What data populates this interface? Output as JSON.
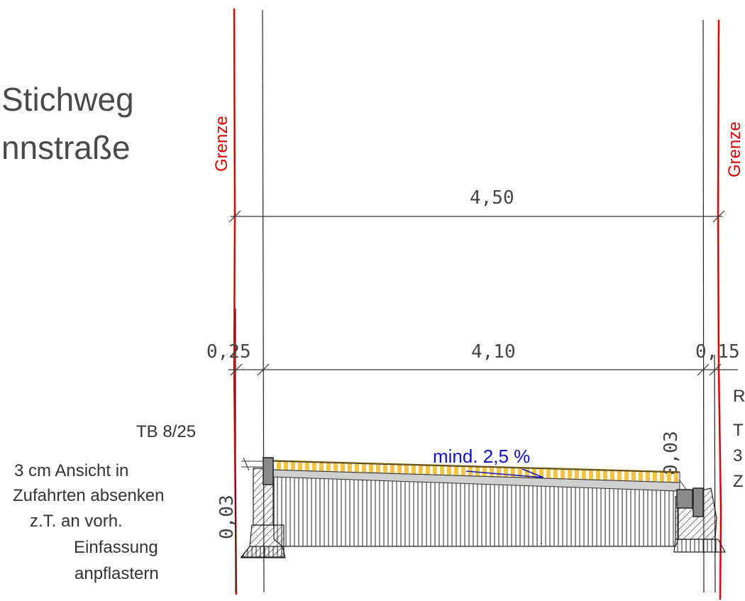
{
  "title": {
    "line1": "Stichweg",
    "line2": "nnstraße"
  },
  "boundary": {
    "left_label": "Grenze",
    "right_label": "Grenze"
  },
  "dimensions": {
    "total": "4,50",
    "left_edge": "0,25",
    "carriageway": "4,10",
    "right_edge": "0,15",
    "left_height": "0,03",
    "right_height": "0,03"
  },
  "slope": {
    "label": "mind. 2,5 %"
  },
  "left_notes": {
    "curb": "TB 8/25",
    "line1": "3 cm Ansicht in",
    "line2": "Zufahrten absenken",
    "line3": "z.T.  an vorh.",
    "line4": "Einfassung",
    "line5": "anpflastern"
  },
  "right_notes": {
    "line1": "R",
    "line2": "T",
    "line3": "3",
    "line4": "Z"
  },
  "colors": {
    "boundary": "#e00000",
    "slope_text": "#1010c8",
    "surface": "#f5c542",
    "curb": "#8a8a8a"
  }
}
